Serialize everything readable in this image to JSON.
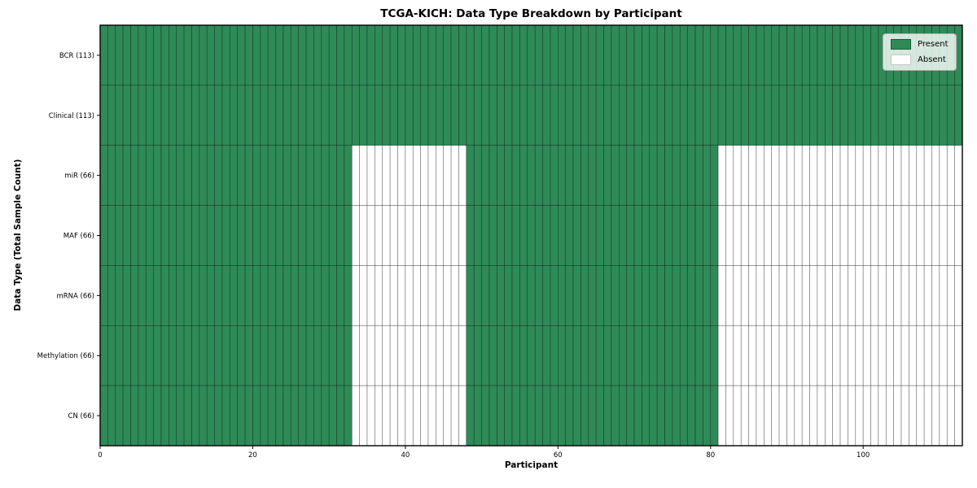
{
  "chart_data": {
    "type": "heatmap",
    "title": "TCGA-KICH: Data Type Breakdown by Participant",
    "xlabel": "Participant",
    "ylabel": "Data Type (Total Sample Count)",
    "n_participants": 113,
    "xlim": [
      0,
      113
    ],
    "x_ticks": [
      0,
      20,
      40,
      60,
      80,
      100
    ],
    "grid": false,
    "legend_position": "upper right",
    "rows": [
      {
        "label": "BCR (113)",
        "present_count": 113,
        "present_ranges": [
          [
            0,
            113
          ]
        ]
      },
      {
        "label": "Clinical (113)",
        "present_count": 113,
        "present_ranges": [
          [
            0,
            113
          ]
        ]
      },
      {
        "label": "miR (66)",
        "present_count": 66,
        "present_ranges": [
          [
            0,
            33
          ],
          [
            48,
            81
          ]
        ]
      },
      {
        "label": "MAF (66)",
        "present_count": 66,
        "present_ranges": [
          [
            0,
            33
          ],
          [
            48,
            81
          ]
        ]
      },
      {
        "label": "mRNA (66)",
        "present_count": 66,
        "present_ranges": [
          [
            0,
            33
          ],
          [
            48,
            81
          ]
        ]
      },
      {
        "label": "Methylation (66)",
        "present_count": 66,
        "present_ranges": [
          [
            0,
            33
          ],
          [
            48,
            81
          ]
        ]
      },
      {
        "label": "CN (66)",
        "present_count": 66,
        "present_ranges": [
          [
            0,
            33
          ],
          [
            48,
            81
          ]
        ]
      }
    ],
    "legend": [
      {
        "label": "Present",
        "key": "present"
      },
      {
        "label": "Absent",
        "key": "absent"
      }
    ],
    "colors": {
      "present": "#2e8b57",
      "absent": "#ffffff",
      "cell_edge": "rgba(0,0,0,0.5)",
      "spine": "#000000"
    }
  }
}
